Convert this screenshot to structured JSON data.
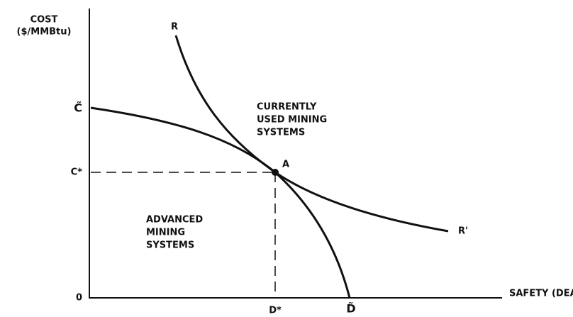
{
  "axes": {
    "y_label": [
      "COST",
      "($/MMBtu)"
    ],
    "x_label": "SAFETY (DEATHS)",
    "origin": "0"
  },
  "ticks": {
    "c_tilde": "C̃",
    "c_star": "C*",
    "d_star": "D*",
    "d_tilde": "D̃"
  },
  "curves": {
    "r_start": "R",
    "r_end": "R'"
  },
  "point": "A",
  "regions": {
    "current": [
      "CURRENTLY",
      "USED MINING",
      "SYSTEMS"
    ],
    "advanced": [
      "ADVANCED",
      "MINING",
      "SYSTEMS"
    ]
  }
}
